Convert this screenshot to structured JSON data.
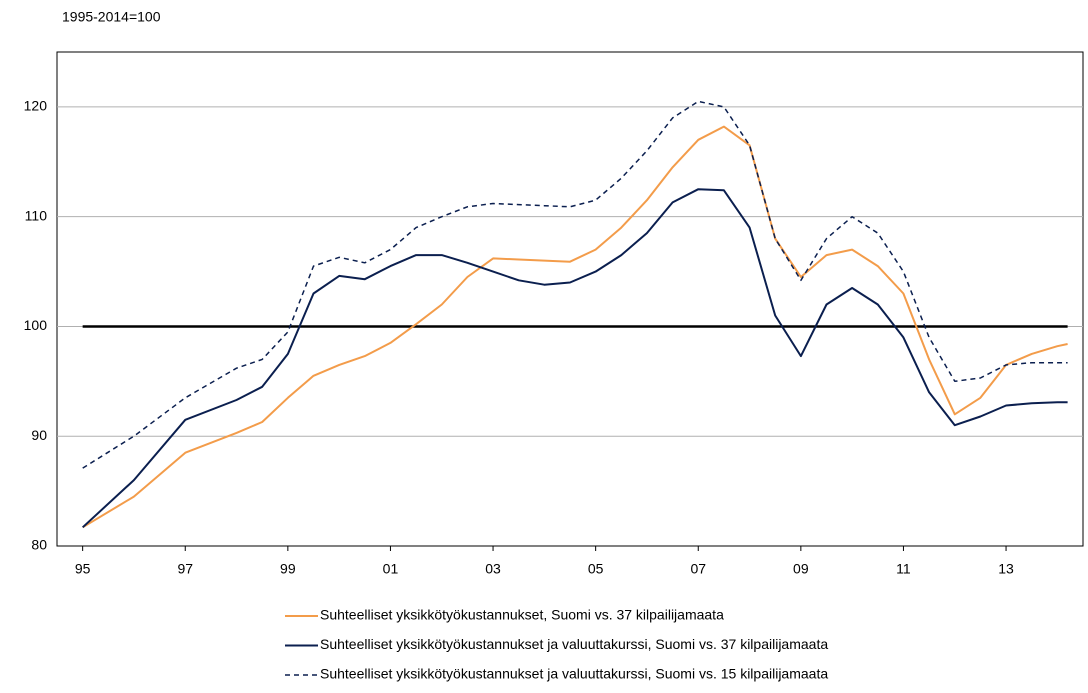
{
  "chart_data": {
    "type": "line",
    "y_unit_label": "1995-2014=100",
    "x": [
      1995.5,
      1996.5,
      1997.5,
      1998.5,
      1999,
      1999.5,
      2000,
      2000.5,
      2001,
      2001.5,
      2002,
      2002.5,
      2003,
      2003.5,
      2004,
      2004.5,
      2005,
      2005.5,
      2006,
      2006.5,
      2007,
      2007.5,
      2008,
      2008.5,
      2009,
      2009.5,
      2010,
      2010.5,
      2011,
      2011.5,
      2012,
      2012.5,
      2013,
      2013.5,
      2014,
      2014.5,
      2014.7
    ],
    "series": [
      {
        "name": "Suhteelliset yksikkötyökustannukset, Suomi vs. 37 kilpailijamaata",
        "color": "#f39c4a",
        "dashed": false,
        "values": [
          81.7,
          84.5,
          88.5,
          90.3,
          91.3,
          93.5,
          95.5,
          96.5,
          97.3,
          98.5,
          100.2,
          102,
          104.5,
          106.2,
          106.1,
          106,
          105.9,
          107,
          109,
          111.5,
          114.5,
          117,
          118.2,
          116.5,
          108,
          104.5,
          106.5,
          107,
          105.5,
          103,
          97,
          92,
          93.5,
          96.5,
          97.5,
          98.2,
          98.4
        ]
      },
      {
        "name": "Suhteelliset yksikkötyökustannukset ja valuuttakurssi, Suomi vs. 37 kilpailijamaata",
        "color": "#0b1f4f",
        "dashed": false,
        "values": [
          81.7,
          86,
          91.5,
          93.3,
          94.5,
          97.5,
          103,
          104.6,
          104.3,
          105.5,
          106.5,
          106.5,
          105.8,
          105,
          104.2,
          103.8,
          104,
          105,
          106.5,
          108.5,
          111.3,
          112.5,
          112.4,
          109,
          101,
          97.3,
          102,
          103.5,
          102,
          99,
          94,
          91,
          91.8,
          92.8,
          93,
          93.1,
          93.1
        ]
      },
      {
        "name": "Suhteelliset yksikkötyökustannukset ja valuuttakurssi, Suomi vs. 15 kilpailijamaata",
        "color": "#0b1f4f",
        "dashed": true,
        "values": [
          87.1,
          90,
          93.5,
          96.2,
          97,
          99.5,
          105.5,
          106.3,
          105.8,
          107,
          109,
          110,
          110.9,
          111.2,
          111.1,
          111,
          110.9,
          111.5,
          113.5,
          116,
          119,
          120.5,
          120,
          116.5,
          108,
          104.2,
          108,
          110,
          108.5,
          105,
          99,
          95,
          95.3,
          96.5,
          96.7,
          96.7,
          96.7
        ]
      }
    ],
    "reference_line": 100,
    "xlim": [
      1995,
      2015
    ],
    "xticks": [
      {
        "value": 1995.5,
        "label": "95"
      },
      {
        "value": 1997.5,
        "label": "97"
      },
      {
        "value": 1999.5,
        "label": "99"
      },
      {
        "value": 2001.5,
        "label": "01"
      },
      {
        "value": 2003.5,
        "label": "03"
      },
      {
        "value": 2005.5,
        "label": "05"
      },
      {
        "value": 2007.5,
        "label": "07"
      },
      {
        "value": 2009.5,
        "label": "09"
      },
      {
        "value": 2011.5,
        "label": "11"
      },
      {
        "value": 2013.5,
        "label": "13"
      }
    ],
    "ylim": [
      80,
      125
    ],
    "yticks": [
      80,
      90,
      100,
      110,
      120
    ],
    "grid": true
  }
}
